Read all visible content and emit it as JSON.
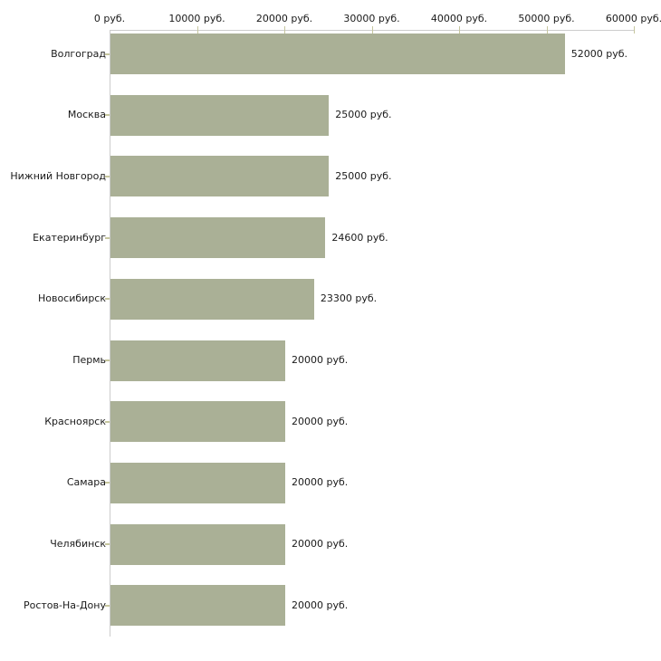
{
  "chart_data": {
    "type": "bar",
    "orientation": "horizontal",
    "title": "",
    "xlabel": "",
    "ylabel": "",
    "grid": false,
    "legend": false,
    "categories": [
      "Волгоград",
      "Москва",
      "Нижний Новгород",
      "Екатеринбург",
      "Новосибирск",
      "Пермь",
      "Красноярск",
      "Самара",
      "Челябинск",
      "Ростов-На-Дону"
    ],
    "values": [
      52000,
      25000,
      25000,
      24600,
      23300,
      20000,
      20000,
      20000,
      20000,
      20000
    ],
    "value_labels": [
      "52000 руб.",
      "25000 руб.",
      "25000 руб.",
      "24600 руб.",
      "23300 руб.",
      "20000 руб.",
      "20000 руб.",
      "20000 руб.",
      "20000 руб.",
      "20000 руб."
    ],
    "x_axis": {
      "position": "top",
      "min": 0,
      "max": 60000,
      "tick_values": [
        0,
        10000,
        20000,
        30000,
        40000,
        50000,
        60000
      ],
      "tick_labels": [
        "0 руб.",
        "10000 руб.",
        "20000 руб.",
        "30000 руб.",
        "40000 руб.",
        "50000 руб.",
        "60000 руб."
      ]
    },
    "colors": {
      "bar": "#aab096",
      "axis_line": "#cccccc",
      "tick": "#c6c69e",
      "text": "#1a1a1a",
      "background": "#ffffff"
    }
  }
}
